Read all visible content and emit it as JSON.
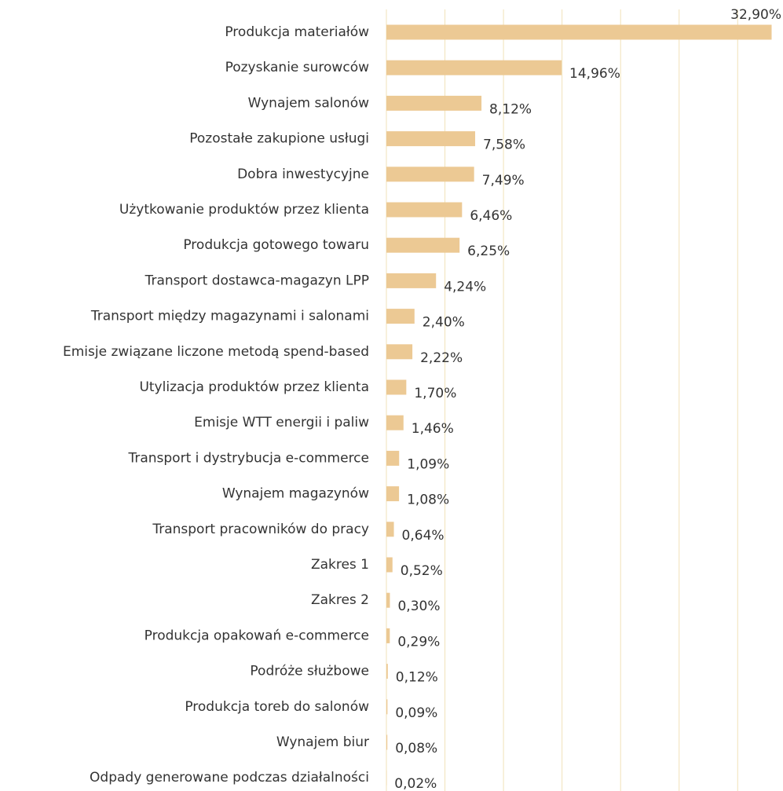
{
  "chart_data": {
    "type": "barh",
    "categories": [
      "Produkcja materiałów",
      "Pozyskanie surowców",
      "Wynajem salonów",
      "Pozostałe zakupione usługi",
      "Dobra inwestycyjne",
      "Użytkowanie produktów przez klienta",
      "Produkcja gotowego towaru",
      "Transport dostawca-magazyn LPP",
      "Transport między magazynami i salonami",
      "Emisje związane liczone metodą spend-based",
      "Utylizacja produktów przez klienta",
      "Emisje WTT energii i paliw",
      "Transport i dystrybucja e-commerce",
      "Wynajem magazynów",
      "Transport pracowników do pracy",
      "Zakres 1",
      "Zakres 2",
      "Produkcja opakowań e-commerce",
      "Podróże służbowe",
      "Produkcja toreb do salonów",
      "Wynajem biur",
      "Odpady generowane podczas działalności"
    ],
    "values": [
      32.9,
      14.96,
      8.12,
      7.58,
      7.49,
      6.46,
      6.25,
      4.24,
      2.4,
      2.22,
      1.7,
      1.46,
      1.09,
      1.08,
      0.64,
      0.52,
      0.3,
      0.29,
      0.12,
      0.09,
      0.08,
      0.02
    ],
    "value_labels": [
      "32,90%",
      "14,96%",
      "8,12%",
      "7,58%",
      "7,49%",
      "6,46%",
      "6,25%",
      "4,24%",
      "2,40%",
      "2,22%",
      "1,70%",
      "1,46%",
      "1,09%",
      "1,08%",
      "0,64%",
      "0,52%",
      "0,30%",
      "0,29%",
      "0,12%",
      "0,09%",
      "0,08%",
      "0,02%"
    ],
    "color": "#ecc994",
    "xlim": [
      0,
      33
    ],
    "xticks": [
      0,
      5,
      10,
      15,
      20,
      25,
      30
    ],
    "grid": true
  }
}
